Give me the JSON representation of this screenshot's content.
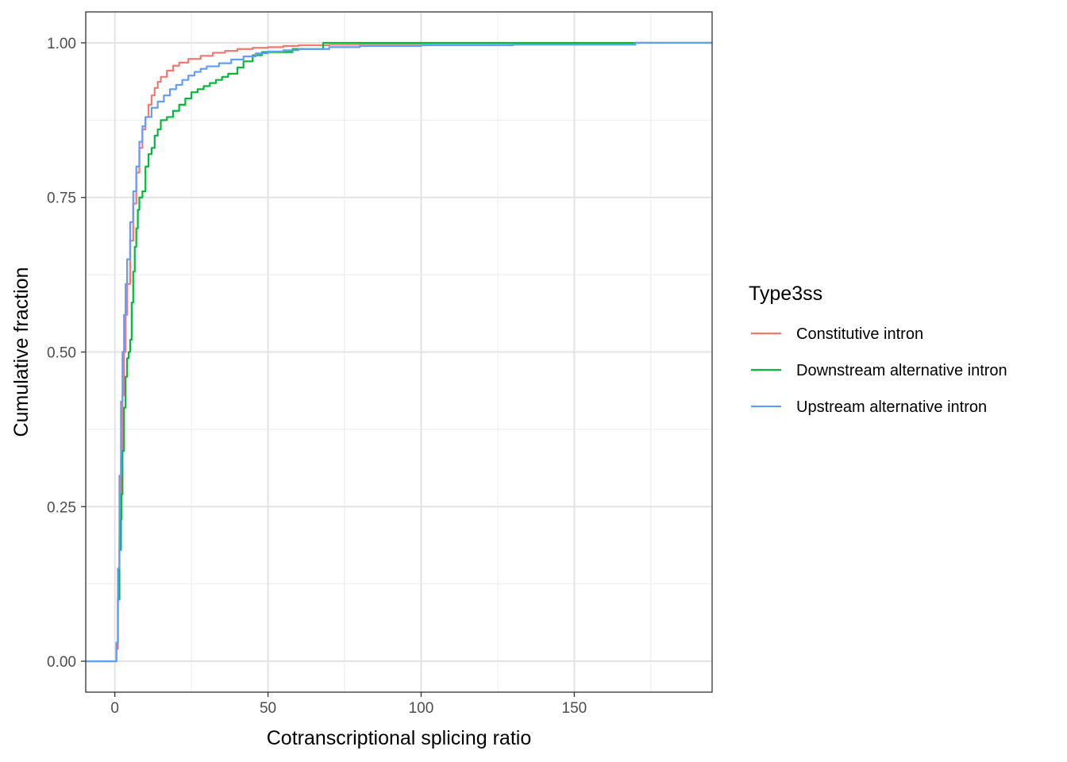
{
  "chart_data": {
    "type": "line",
    "subtype": "ecdf-step",
    "title": "",
    "xlabel": "Cotranscriptional splicing ratio",
    "ylabel": "Cumulative fraction",
    "xlim": [
      -9.5,
      195
    ],
    "ylim": [
      -0.05,
      1.05
    ],
    "x_ticks": [
      0,
      50,
      100,
      150
    ],
    "x_tick_labels": [
      "0",
      "50",
      "100",
      "150"
    ],
    "x_minor_ticks": [
      25,
      75,
      125,
      175
    ],
    "y_ticks": [
      0,
      0.25,
      0.5,
      0.75,
      1
    ],
    "y_tick_labels": [
      "0.00",
      "0.25",
      "0.50",
      "0.75",
      "1.00"
    ],
    "y_minor_ticks": [
      0.125,
      0.375,
      0.625,
      0.875
    ],
    "grid": true,
    "legend": {
      "title": "Type3ss",
      "position": "right"
    },
    "series": [
      {
        "name": "Constitutive intron",
        "color": "#F8766D",
        "points": [
          [
            -9.5,
            0
          ],
          [
            0,
            0
          ],
          [
            0.5,
            0.02
          ],
          [
            1,
            0.1
          ],
          [
            1.5,
            0.2
          ],
          [
            2,
            0.33
          ],
          [
            2.5,
            0.43
          ],
          [
            3,
            0.5
          ],
          [
            3.5,
            0.56
          ],
          [
            4,
            0.61
          ],
          [
            5,
            0.68
          ],
          [
            6,
            0.74
          ],
          [
            7,
            0.79
          ],
          [
            8,
            0.83
          ],
          [
            9,
            0.86
          ],
          [
            10,
            0.88
          ],
          [
            11,
            0.9
          ],
          [
            12,
            0.915
          ],
          [
            13,
            0.927
          ],
          [
            14,
            0.937
          ],
          [
            15,
            0.945
          ],
          [
            17,
            0.955
          ],
          [
            19,
            0.963
          ],
          [
            21,
            0.968
          ],
          [
            24,
            0.974
          ],
          [
            28,
            0.979
          ],
          [
            32,
            0.984
          ],
          [
            36,
            0.987
          ],
          [
            40,
            0.99
          ],
          [
            45,
            0.992
          ],
          [
            50,
            0.993
          ],
          [
            55,
            0.995
          ],
          [
            60,
            0.996
          ],
          [
            70,
            0.997
          ],
          [
            80,
            0.998
          ],
          [
            100,
            0.999
          ],
          [
            130,
            0.9995
          ],
          [
            170,
            1
          ],
          [
            195,
            1
          ]
        ]
      },
      {
        "name": "Downstream alternative intron",
        "color": "#00BA38",
        "points": [
          [
            -9.5,
            0
          ],
          [
            0,
            0
          ],
          [
            0.5,
            0.03
          ],
          [
            1,
            0.1
          ],
          [
            1.5,
            0.18
          ],
          [
            2,
            0.23
          ],
          [
            2.2,
            0.27
          ],
          [
            2.5,
            0.34
          ],
          [
            3,
            0.41
          ],
          [
            3.5,
            0.46
          ],
          [
            4,
            0.49
          ],
          [
            4.5,
            0.5
          ],
          [
            5,
            0.52
          ],
          [
            5.5,
            0.58
          ],
          [
            6,
            0.63
          ],
          [
            6.5,
            0.67
          ],
          [
            7,
            0.7
          ],
          [
            7.5,
            0.73
          ],
          [
            8,
            0.75
          ],
          [
            9,
            0.76
          ],
          [
            10,
            0.8
          ],
          [
            11,
            0.82
          ],
          [
            12,
            0.83
          ],
          [
            13,
            0.85
          ],
          [
            14,
            0.86
          ],
          [
            15,
            0.875
          ],
          [
            17,
            0.88
          ],
          [
            19,
            0.89
          ],
          [
            21,
            0.9
          ],
          [
            23,
            0.91
          ],
          [
            25,
            0.92
          ],
          [
            27,
            0.925
          ],
          [
            29,
            0.93
          ],
          [
            31,
            0.935
          ],
          [
            33,
            0.94
          ],
          [
            35,
            0.945
          ],
          [
            37,
            0.95
          ],
          [
            40,
            0.96
          ],
          [
            42,
            0.97
          ],
          [
            45,
            0.98
          ],
          [
            48,
            0.985
          ],
          [
            58,
            0.99
          ],
          [
            68,
            1
          ],
          [
            195,
            1
          ]
        ]
      },
      {
        "name": "Upstream alternative intron",
        "color": "#619CFF",
        "points": [
          [
            -9.5,
            0
          ],
          [
            0,
            0
          ],
          [
            0.5,
            0.03
          ],
          [
            1,
            0.15
          ],
          [
            1.5,
            0.3
          ],
          [
            2,
            0.42
          ],
          [
            2.5,
            0.5
          ],
          [
            3,
            0.56
          ],
          [
            3.5,
            0.61
          ],
          [
            4,
            0.65
          ],
          [
            5,
            0.71
          ],
          [
            6,
            0.76
          ],
          [
            7,
            0.8
          ],
          [
            8,
            0.84
          ],
          [
            9,
            0.865
          ],
          [
            10,
            0.88
          ],
          [
            12,
            0.895
          ],
          [
            14,
            0.905
          ],
          [
            16,
            0.915
          ],
          [
            18,
            0.925
          ],
          [
            20,
            0.932
          ],
          [
            22,
            0.94
          ],
          [
            24,
            0.947
          ],
          [
            26,
            0.953
          ],
          [
            28,
            0.958
          ],
          [
            30,
            0.962
          ],
          [
            34,
            0.967
          ],
          [
            38,
            0.973
          ],
          [
            42,
            0.978
          ],
          [
            46,
            0.983
          ],
          [
            50,
            0.986
          ],
          [
            55,
            0.988
          ],
          [
            60,
            0.99
          ],
          [
            70,
            0.993
          ],
          [
            80,
            0.995
          ],
          [
            100,
            0.996
          ],
          [
            130,
            0.997
          ],
          [
            170,
            1
          ],
          [
            195,
            1
          ]
        ]
      }
    ]
  }
}
